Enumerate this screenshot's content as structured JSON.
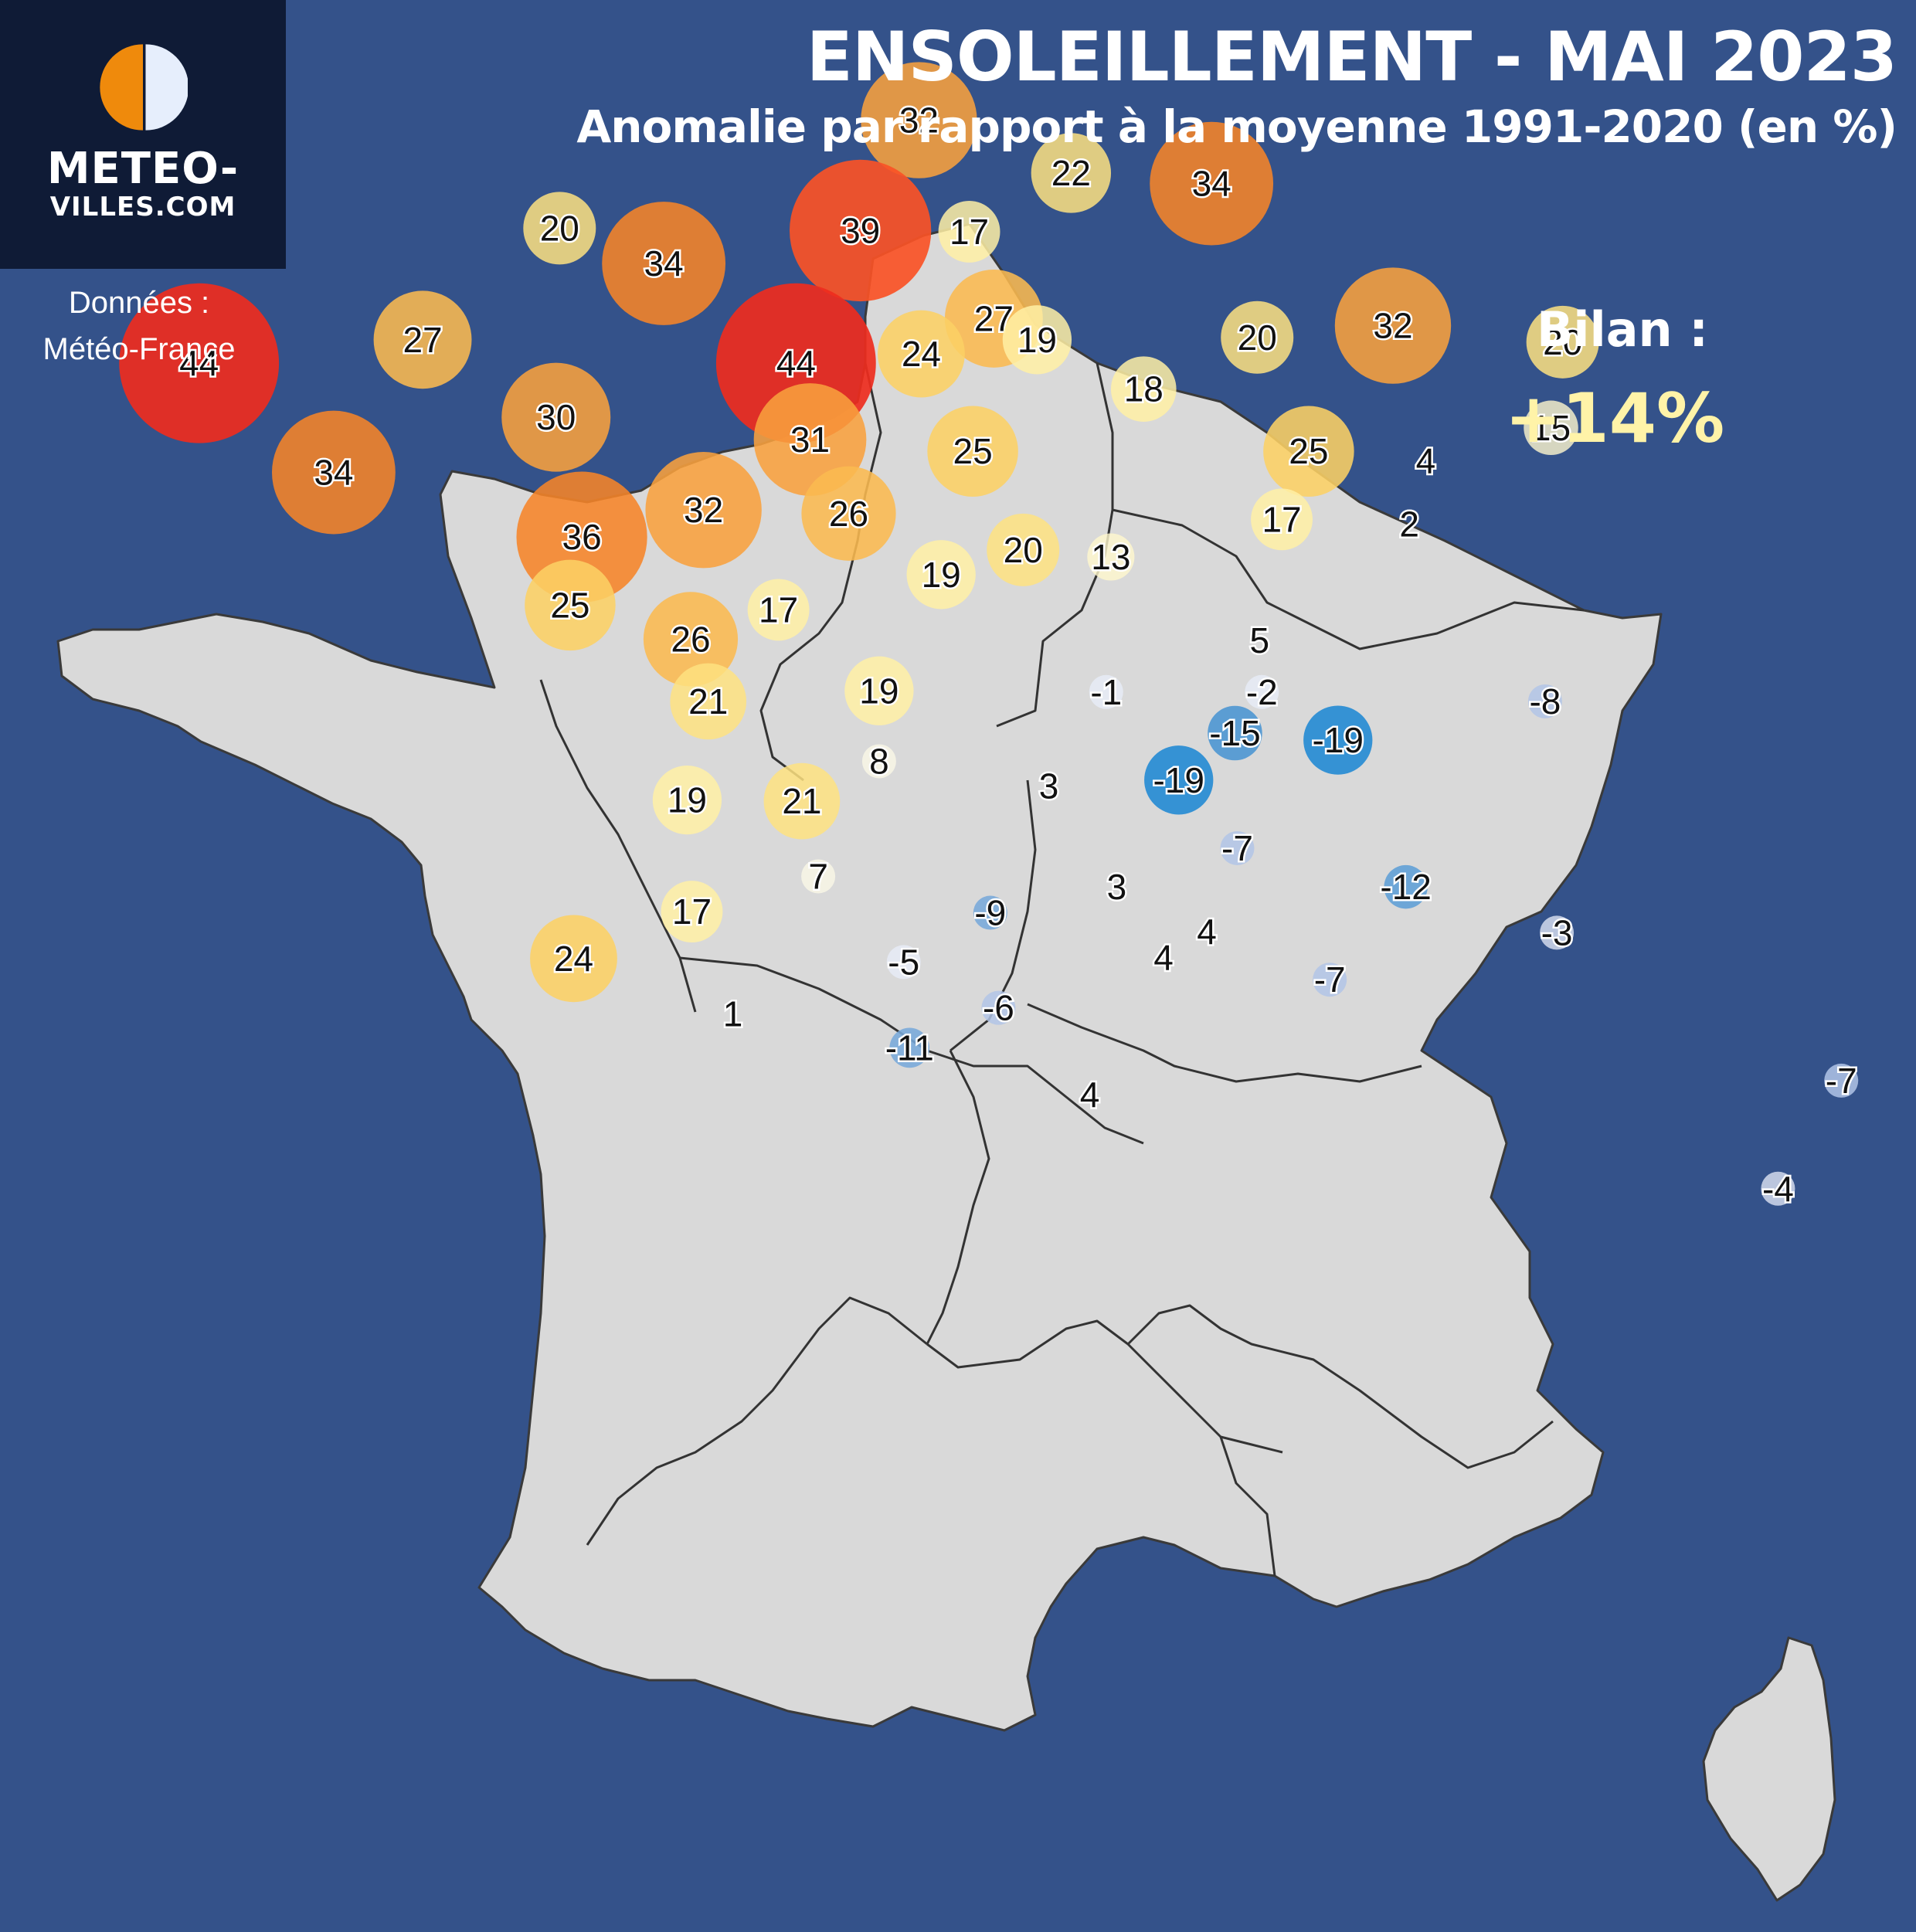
{
  "logo": {
    "line1": "METEO-",
    "line2": "VILLES.COM",
    "colors": {
      "sun": "#ef8a0c",
      "moon": "#e6eefc",
      "box": "#0f1b36"
    },
    "icon": "sun-moon-icon"
  },
  "source": {
    "line1": "Données :",
    "line2": "Météo-France"
  },
  "title": "ENSOLEILLEMENT - MAI 2023",
  "subtitle": "Anomalie par rapport à la moyenne 1991-2020 (en %)",
  "summary": {
    "label": "Bilan :",
    "value": "+14%"
  },
  "colors": {
    "background": "#34528a",
    "land": "#d9d9d9",
    "border": "#333333"
  },
  "stations": [
    {
      "value": 32,
      "lon": 1.6,
      "lat": 50.72
    },
    {
      "value": 22,
      "lon": 2.9,
      "lat": 50.27
    },
    {
      "value": 34,
      "lon": 4.1,
      "lat": 50.18
    },
    {
      "value": 20,
      "lon": -1.47,
      "lat": 49.8
    },
    {
      "value": 39,
      "lon": 1.1,
      "lat": 49.78
    },
    {
      "value": 17,
      "lon": 2.03,
      "lat": 49.77
    },
    {
      "value": 34,
      "lon": -0.58,
      "lat": 49.5
    },
    {
      "value": 27,
      "lon": 2.24,
      "lat": 49.03
    },
    {
      "value": 19,
      "lon": 2.61,
      "lat": 48.85
    },
    {
      "value": 20,
      "lon": 4.49,
      "lat": 48.87
    },
    {
      "value": 32,
      "lon": 5.65,
      "lat": 48.97
    },
    {
      "value": 20,
      "lon": 7.1,
      "lat": 48.83
    },
    {
      "value": 44,
      "lon": -4.55,
      "lat": 48.65
    },
    {
      "value": 27,
      "lon": -2.64,
      "lat": 48.85
    },
    {
      "value": 44,
      "lon": 0.55,
      "lat": 48.65
    },
    {
      "value": 24,
      "lon": 1.62,
      "lat": 48.73
    },
    {
      "value": 18,
      "lon": 3.52,
      "lat": 48.43
    },
    {
      "value": 15,
      "lon": 7.0,
      "lat": 48.1
    },
    {
      "value": 30,
      "lon": -1.5,
      "lat": 48.19
    },
    {
      "value": 31,
      "lon": 0.67,
      "lat": 48.0
    },
    {
      "value": 25,
      "lon": 2.06,
      "lat": 47.9
    },
    {
      "value": 25,
      "lon": 4.93,
      "lat": 47.9
    },
    {
      "value": 4,
      "lon": 5.93,
      "lat": 47.82
    },
    {
      "value": 34,
      "lon": -3.4,
      "lat": 47.72
    },
    {
      "value": 32,
      "lon": -0.24,
      "lat": 47.4
    },
    {
      "value": 26,
      "lon": 1.0,
      "lat": 47.37
    },
    {
      "value": 17,
      "lon": 4.7,
      "lat": 47.32
    },
    {
      "value": 2,
      "lon": 5.79,
      "lat": 47.28
    },
    {
      "value": 36,
      "lon": -1.28,
      "lat": 47.17
    },
    {
      "value": 20,
      "lon": 2.49,
      "lat": 47.06
    },
    {
      "value": 13,
      "lon": 3.24,
      "lat": 47.0
    },
    {
      "value": 19,
      "lon": 1.79,
      "lat": 46.85
    },
    {
      "value": 25,
      "lon": -1.38,
      "lat": 46.59
    },
    {
      "value": 17,
      "lon": 0.4,
      "lat": 46.55
    },
    {
      "value": 26,
      "lon": -0.35,
      "lat": 46.3
    },
    {
      "value": 5,
      "lon": 4.51,
      "lat": 46.29
    },
    {
      "value": 19,
      "lon": 1.26,
      "lat": 45.86
    },
    {
      "value": -1,
      "lon": 3.2,
      "lat": 45.85
    },
    {
      "value": -2,
      "lon": 4.53,
      "lat": 45.85
    },
    {
      "value": -8,
      "lon": 6.95,
      "lat": 45.77
    },
    {
      "value": 21,
      "lon": -0.2,
      "lat": 45.77
    },
    {
      "value": -15,
      "lon": 4.3,
      "lat": 45.5
    },
    {
      "value": -19,
      "lon": 5.18,
      "lat": 45.44
    },
    {
      "value": -19,
      "lon": 3.82,
      "lat": 45.1
    },
    {
      "value": 8,
      "lon": 1.26,
      "lat": 45.26
    },
    {
      "value": 3,
      "lon": 2.71,
      "lat": 45.05
    },
    {
      "value": 19,
      "lon": -0.38,
      "lat": 44.93
    },
    {
      "value": 21,
      "lon": 0.6,
      "lat": 44.92
    },
    {
      "value": -7,
      "lon": 4.32,
      "lat": 44.52
    },
    {
      "value": -12,
      "lon": 5.76,
      "lat": 44.19
    },
    {
      "value": 7,
      "lon": 0.74,
      "lat": 44.28
    },
    {
      "value": 3,
      "lon": 3.29,
      "lat": 44.19
    },
    {
      "value": -9,
      "lon": 2.21,
      "lat": 43.97
    },
    {
      "value": 4,
      "lon": 4.06,
      "lat": 43.81
    },
    {
      "value": 17,
      "lon": -0.34,
      "lat": 43.98
    },
    {
      "value": -3,
      "lon": 7.05,
      "lat": 43.8
    },
    {
      "value": 4,
      "lon": 3.69,
      "lat": 43.59
    },
    {
      "value": -5,
      "lon": 1.47,
      "lat": 43.55
    },
    {
      "value": 24,
      "lon": -1.35,
      "lat": 43.58
    },
    {
      "value": -7,
      "lon": 5.11,
      "lat": 43.4
    },
    {
      "value": -6,
      "lon": 2.28,
      "lat": 43.16
    },
    {
      "value": 1,
      "lon": 0.01,
      "lat": 43.11
    },
    {
      "value": -11,
      "lon": 1.52,
      "lat": 42.82
    },
    {
      "value": 4,
      "lon": 3.06,
      "lat": 42.42
    },
    {
      "value": -7,
      "lon": 9.48,
      "lat": 42.54
    },
    {
      "value": -4,
      "lon": 8.94,
      "lat": 41.62
    }
  ]
}
